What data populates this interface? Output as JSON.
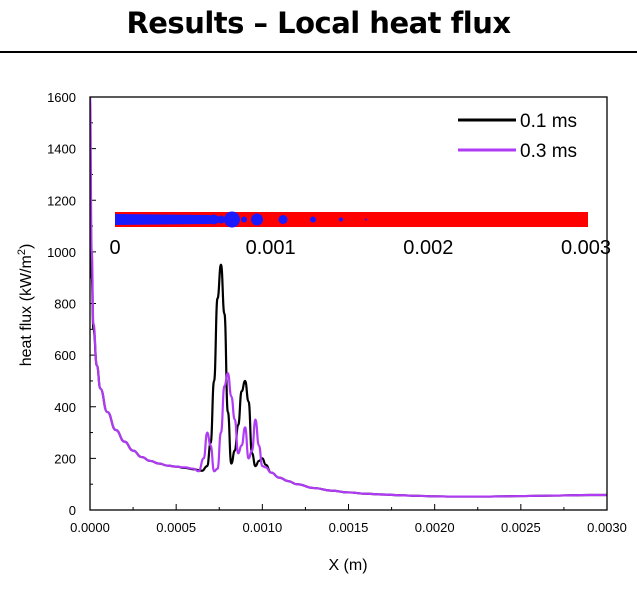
{
  "slide": {
    "title": "Results – Local heat flux"
  },
  "chart_data": {
    "type": "line",
    "xlabel": "X (m)",
    "ylabel_main": "heat flux (kW/m",
    "ylabel_sup": "2",
    "ylabel_tail": ")",
    "xlim": [
      0,
      0.003
    ],
    "ylim": [
      0,
      1600
    ],
    "x_ticks": [
      {
        "value": 0,
        "label": "0.0000"
      },
      {
        "value": 0.0005,
        "label": "0.0005"
      },
      {
        "value": 0.001,
        "label": "0.0010"
      },
      {
        "value": 0.0015,
        "label": "0.0015"
      },
      {
        "value": 0.002,
        "label": "0.0020"
      },
      {
        "value": 0.0025,
        "label": "0.0025"
      },
      {
        "value": 0.003,
        "label": "0.0030"
      }
    ],
    "y_ticks": [
      {
        "value": 0,
        "label": "0"
      },
      {
        "value": 200,
        "label": "200"
      },
      {
        "value": 400,
        "label": "400"
      },
      {
        "value": 600,
        "label": "600"
      },
      {
        "value": 800,
        "label": "800"
      },
      {
        "value": 1000,
        "label": "1000"
      },
      {
        "value": 1200,
        "label": "1200"
      },
      {
        "value": 1400,
        "label": "1400"
      },
      {
        "value": 1600,
        "label": "1600"
      }
    ],
    "legend_position": "top-right",
    "series": [
      {
        "name": "0.1 ms",
        "color": "#000000",
        "x": [
          0.0,
          1e-05,
          2e-05,
          4e-05,
          6e-05,
          0.0001,
          0.00015,
          0.0002,
          0.00025,
          0.0003,
          0.00035,
          0.0004,
          0.00045,
          0.0005,
          0.00055,
          0.0006,
          0.00065,
          0.00068,
          0.0007,
          0.00072,
          0.00074,
          0.00076,
          0.00078,
          0.0008,
          0.00082,
          0.00084,
          0.00086,
          0.00088,
          0.0009,
          0.00092,
          0.00094,
          0.00096,
          0.00098,
          0.001,
          0.00102,
          0.00105,
          0.0011,
          0.00115,
          0.0012,
          0.0013,
          0.0014,
          0.0015,
          0.0016,
          0.0017,
          0.0018,
          0.0019,
          0.002,
          0.0021,
          0.0022,
          0.0023,
          0.0024,
          0.0025,
          0.0026,
          0.0027,
          0.0028,
          0.0029,
          0.003
        ],
        "y": [
          1400,
          900,
          700,
          560,
          470,
          380,
          310,
          265,
          230,
          205,
          190,
          180,
          172,
          168,
          163,
          158,
          152,
          170,
          260,
          500,
          820,
          950,
          760,
          380,
          180,
          230,
          330,
          460,
          500,
          420,
          220,
          170,
          190,
          200,
          175,
          145,
          125,
          112,
          100,
          85,
          75,
          68,
          63,
          60,
          57,
          55,
          53,
          52,
          52,
          52,
          53,
          54,
          55,
          56,
          57,
          58,
          58
        ]
      },
      {
        "name": "0.3 ms",
        "color": "#b03bf5",
        "x": [
          0.0,
          1e-05,
          2e-05,
          4e-05,
          6e-05,
          0.0001,
          0.00015,
          0.0002,
          0.00025,
          0.0003,
          0.00035,
          0.0004,
          0.00045,
          0.0005,
          0.00055,
          0.0006,
          0.00063,
          0.00066,
          0.00068,
          0.0007,
          0.00072,
          0.00074,
          0.00076,
          0.00078,
          0.0008,
          0.00082,
          0.00084,
          0.00086,
          0.00088,
          0.0009,
          0.00092,
          0.00094,
          0.00096,
          0.00098,
          0.001,
          0.00102,
          0.00105,
          0.0011,
          0.00115,
          0.0012,
          0.0013,
          0.0014,
          0.0015,
          0.0016,
          0.0017,
          0.0018,
          0.0019,
          0.002,
          0.0021,
          0.0022,
          0.0023,
          0.0024,
          0.0025,
          0.0026,
          0.0027,
          0.0028,
          0.0029,
          0.003
        ],
        "y": [
          1600,
          1000,
          720,
          560,
          470,
          380,
          310,
          265,
          230,
          205,
          190,
          180,
          172,
          168,
          165,
          160,
          150,
          200,
          300,
          250,
          150,
          160,
          300,
          480,
          530,
          440,
          350,
          220,
          250,
          320,
          200,
          230,
          350,
          250,
          170,
          165,
          145,
          125,
          112,
          100,
          85,
          75,
          68,
          63,
          60,
          57,
          55,
          53,
          52,
          52,
          52,
          53,
          54,
          55,
          56,
          57,
          58,
          58
        ]
      }
    ],
    "inset": {
      "tick_labels": [
        "0",
        "0.001",
        "0.002",
        "0.003"
      ],
      "tick_values": [
        0,
        0.001,
        0.002,
        0.003
      ],
      "bar_color": "#ff0000",
      "bubble_color": "#1a1aff"
    }
  }
}
